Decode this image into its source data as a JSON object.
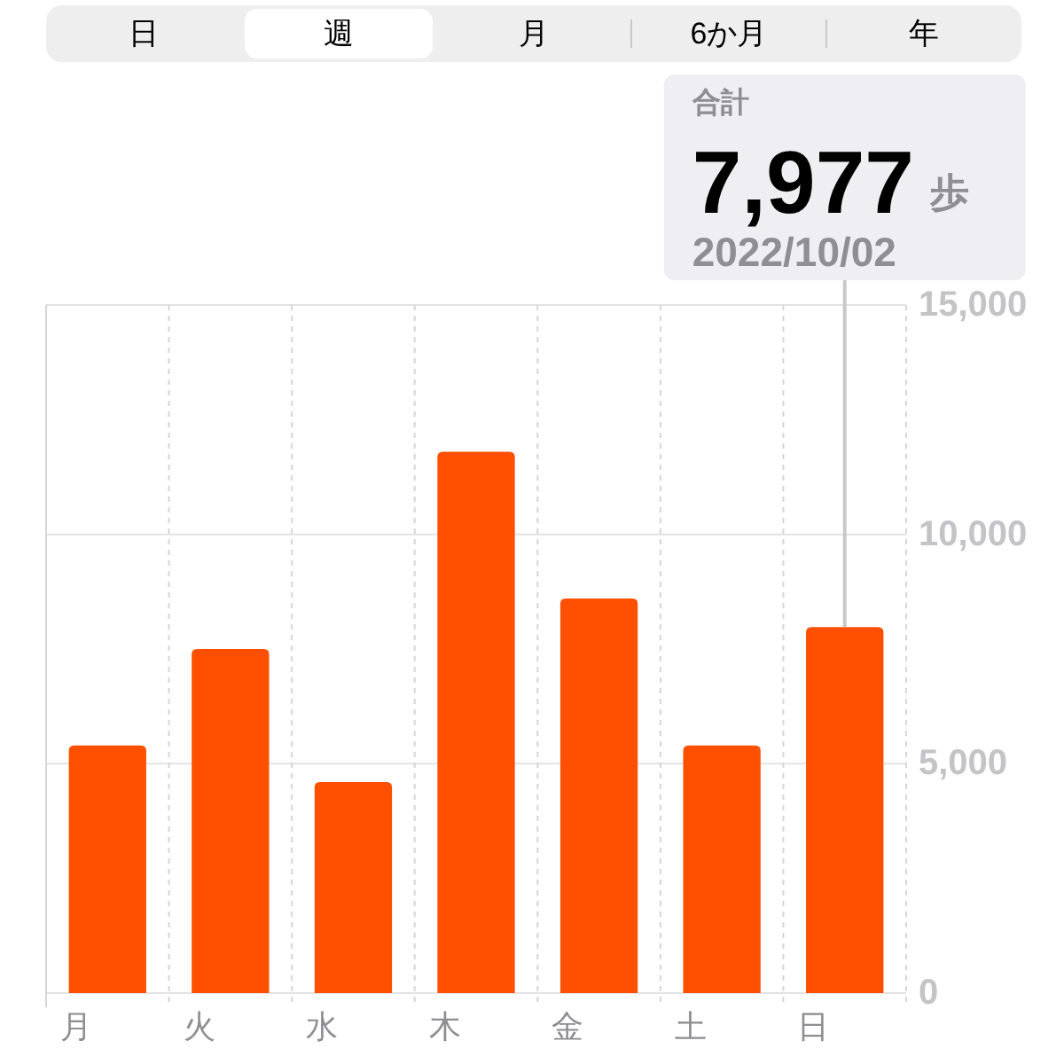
{
  "chart_data": {
    "type": "bar",
    "categories": [
      "月",
      "火",
      "水",
      "木",
      "金",
      "土",
      "日"
    ],
    "values": [
      5400,
      7500,
      4600,
      11800,
      8600,
      5400,
      7977
    ],
    "color": "#ff4f00",
    "ylim": [
      0,
      15000
    ],
    "yticks": [
      0,
      {
        "value": 5000,
        "label": "5,000"
      },
      {
        "value": 10000,
        "label": "10,000"
      },
      {
        "value": 15000,
        "label": "15,000"
      }
    ],
    "grid": true,
    "annotations": [
      "日",
      "週",
      "月",
      "6か月",
      "年",
      "合計",
      "7,977",
      "歩",
      "2022/10/02"
    ]
  }
}
